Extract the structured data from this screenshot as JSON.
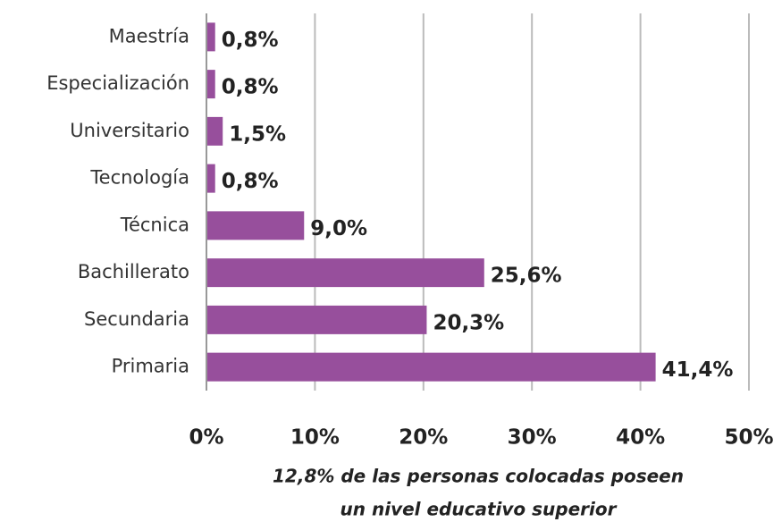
{
  "chart_data": {
    "type": "bar",
    "orientation": "horizontal",
    "categories": [
      "Maestría",
      "Especialización",
      "Universitario",
      "Tecnología",
      "Técnica",
      "Bachillerato",
      "Secundaria",
      "Primaria"
    ],
    "values": [
      0.8,
      0.8,
      1.5,
      0.8,
      9.0,
      25.6,
      20.3,
      41.4
    ],
    "value_labels": [
      "0,8%",
      "0,8%",
      "1,5%",
      "0,8%",
      "9,0%",
      "25,6%",
      "20,3%",
      "41,4%"
    ],
    "color": "#974f9c",
    "xlim": [
      0,
      50
    ],
    "xticks": [
      {
        "value": 0,
        "label": "0%"
      },
      {
        "value": 10,
        "label": "10%"
      },
      {
        "value": 20,
        "label": "20%"
      },
      {
        "value": 30,
        "label": "30%"
      },
      {
        "value": 40,
        "label": "40%"
      },
      {
        "value": 50,
        "label": "50%"
      }
    ],
    "grid": true,
    "annotation": [
      "12,8% de las personas colocadas poseen",
      "un nivel educativo superior"
    ]
  }
}
